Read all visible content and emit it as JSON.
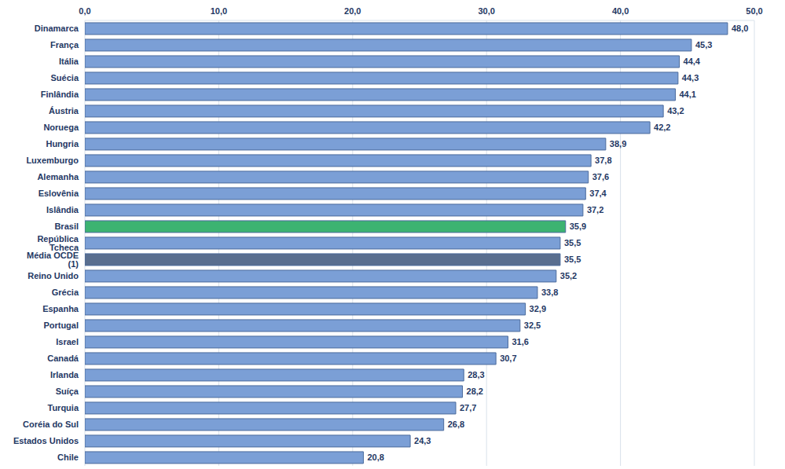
{
  "chart_data": {
    "type": "bar",
    "orientation": "horizontal",
    "categories": [
      "Dinamarca",
      "França",
      "Itália",
      "Suécia",
      "Finlândia",
      "Áustria",
      "Noruega",
      "Hungria",
      "Luxemburgo",
      "Alemanha",
      "Eslovênia",
      "Islândia",
      "Brasil",
      "República Tcheca",
      "Média OCDE (1)",
      "Reino Unido",
      "Grécia",
      "Espanha",
      "Portugal",
      "Israel",
      "Canadá",
      "Irlanda",
      "Suíça",
      "Turquia",
      "Coréia do Sul",
      "Estados Unidos",
      "Chile"
    ],
    "values": [
      48.0,
      45.3,
      44.4,
      44.3,
      44.1,
      43.2,
      42.2,
      38.9,
      37.8,
      37.6,
      37.4,
      37.2,
      35.9,
      35.5,
      35.5,
      35.2,
      33.8,
      32.9,
      32.5,
      31.6,
      30.7,
      28.3,
      28.2,
      27.7,
      26.8,
      24.3,
      20.8
    ],
    "value_labels": [
      "48,0",
      "45,3",
      "44,4",
      "44,3",
      "44,1",
      "43,2",
      "42,2",
      "38,9",
      "37,8",
      "37,6",
      "37,4",
      "37,2",
      "35,9",
      "35,5",
      "35,5",
      "35,2",
      "33,8",
      "32,9",
      "32,5",
      "31,6",
      "30,7",
      "28,3",
      "28,2",
      "27,7",
      "26,8",
      "24,3",
      "20,8"
    ],
    "colors": [
      "#7b9fd6",
      "#7b9fd6",
      "#7b9fd6",
      "#7b9fd6",
      "#7b9fd6",
      "#7b9fd6",
      "#7b9fd6",
      "#7b9fd6",
      "#7b9fd6",
      "#7b9fd6",
      "#7b9fd6",
      "#7b9fd6",
      "#3cb371",
      "#7b9fd6",
      "#596e8f",
      "#7b9fd6",
      "#7b9fd6",
      "#7b9fd6",
      "#7b9fd6",
      "#7b9fd6",
      "#7b9fd6",
      "#7b9fd6",
      "#7b9fd6",
      "#7b9fd6",
      "#7b9fd6",
      "#7b9fd6",
      "#7b9fd6"
    ],
    "xlim": [
      0,
      50
    ],
    "xticks": [
      {
        "value": 0,
        "label": "0,0"
      },
      {
        "value": 10,
        "label": "10,0"
      },
      {
        "value": 20,
        "label": "20,0"
      },
      {
        "value": 30,
        "label": "30,0"
      },
      {
        "value": 40,
        "label": "40,0"
      },
      {
        "value": 50,
        "label": "50,0"
      }
    ],
    "grid": true,
    "data_labels": true
  }
}
